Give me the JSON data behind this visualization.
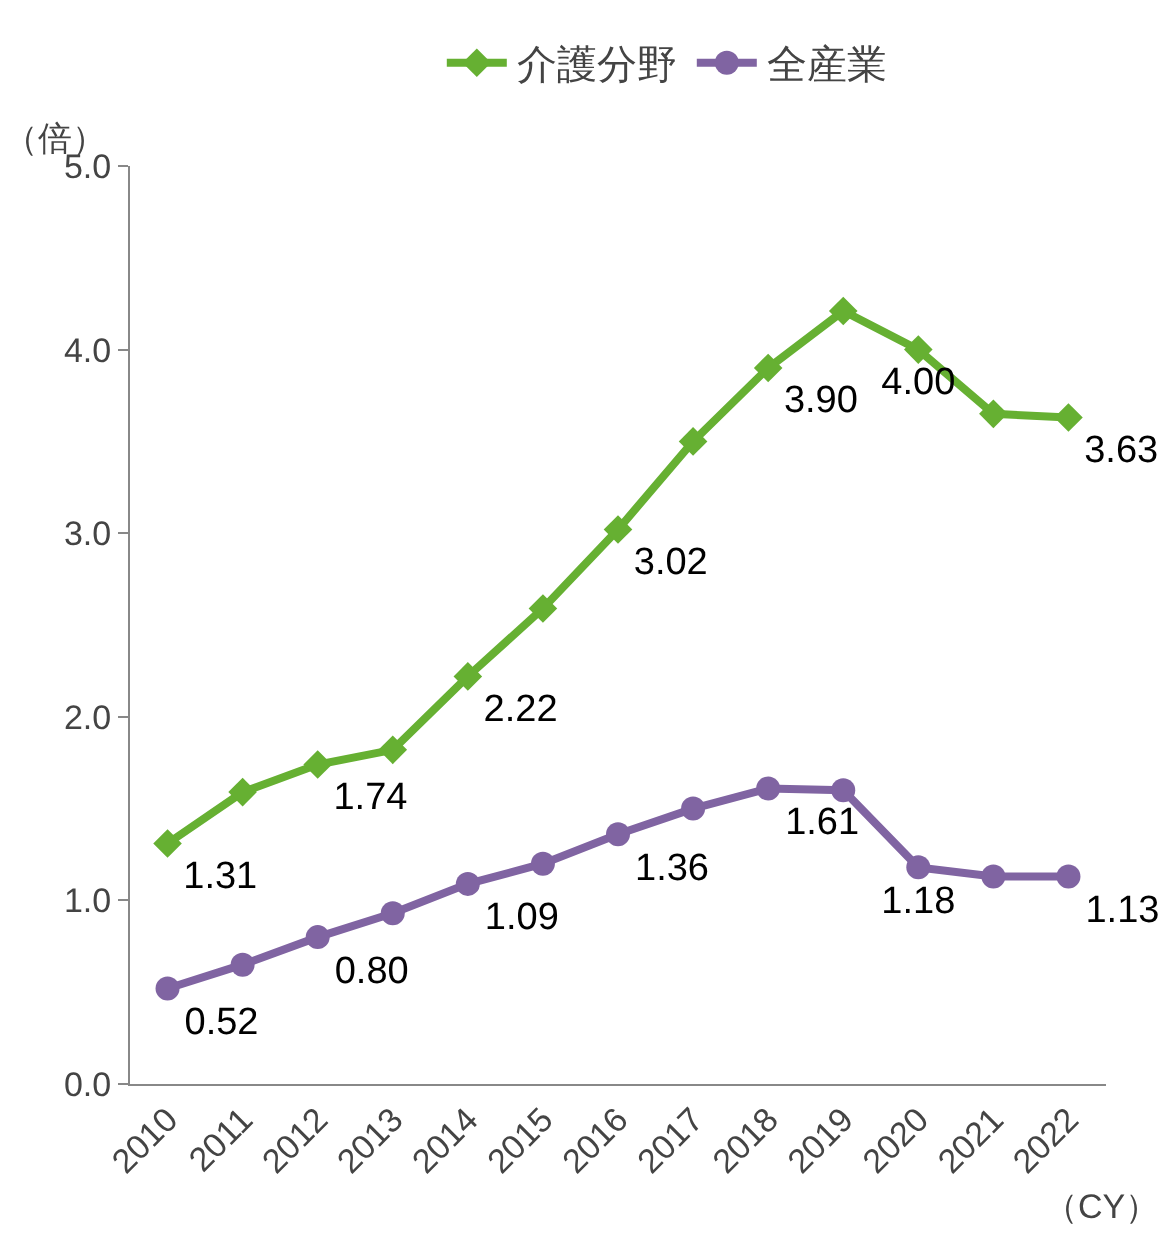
{
  "chart_data": {
    "type": "line",
    "ylabel": "（倍）",
    "xlabel": "（CY）",
    "legend": "top",
    "grid": false,
    "categories": [
      "2010",
      "2011",
      "2012",
      "2013",
      "2014",
      "2015",
      "2016",
      "2017",
      "2018",
      "2019",
      "2020",
      "2021",
      "2022"
    ],
    "ylim": [
      0,
      5
    ],
    "yticks": [
      {
        "value": 0,
        "label": "0.0"
      },
      {
        "value": 1,
        "label": "1.0"
      },
      {
        "value": 2,
        "label": "2.0"
      },
      {
        "value": 3,
        "label": "3.0"
      },
      {
        "value": 4,
        "label": "4.0"
      },
      {
        "value": 5,
        "label": "5.0"
      }
    ],
    "series": [
      {
        "name": "介護分野",
        "color": "#66b032",
        "marker": "diamond",
        "values": [
          1.31,
          1.59,
          1.74,
          1.82,
          2.22,
          2.59,
          3.02,
          3.5,
          3.9,
          4.21,
          4.0,
          3.65,
          3.63
        ],
        "value_labels": [
          "1.31",
          null,
          "1.74",
          null,
          "2.22",
          null,
          "3.02",
          null,
          "3.90",
          null,
          "4.00",
          null,
          "3.63"
        ]
      },
      {
        "name": "全産業",
        "color": "#8064a2",
        "marker": "circle",
        "values": [
          0.52,
          0.65,
          0.8,
          0.93,
          1.09,
          1.2,
          1.36,
          1.5,
          1.61,
          1.6,
          1.18,
          1.13,
          1.13
        ],
        "value_labels": [
          "0.52",
          null,
          "0.80",
          null,
          "1.09",
          null,
          "1.36",
          null,
          "1.61",
          null,
          "1.18",
          null,
          "1.13"
        ]
      }
    ]
  }
}
